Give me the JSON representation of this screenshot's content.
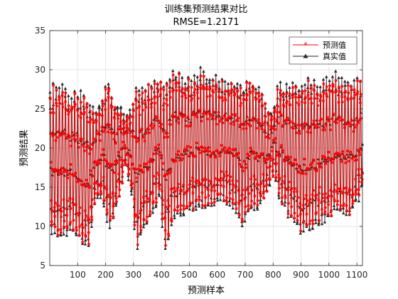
{
  "chart_data": {
    "type": "line",
    "title": "训练集预测结果对比",
    "subtitle": "RMSE=1.2171",
    "xlabel": "预测样本",
    "ylabel": "预测结果",
    "xlim": [
      0,
      1120
    ],
    "ylim": [
      5,
      35
    ],
    "xticks": [
      100,
      200,
      300,
      400,
      500,
      600,
      700,
      800,
      900,
      1000,
      1100
    ],
    "yticks": [
      5,
      10,
      15,
      20,
      25,
      30,
      35
    ],
    "grid": true,
    "legend_position": "top-right",
    "n_samples": 1120,
    "period": 11,
    "series": [
      {
        "name": "预测值",
        "color": "#ff0000",
        "marker": "star",
        "amplitude_scale": 0.92,
        "lag": 1
      },
      {
        "name": "真实值",
        "color": "#262626",
        "marker": "triangle-up",
        "amplitude_scale": 1.0,
        "lag": 0
      }
    ],
    "envelope": {
      "x": [
        0,
        40,
        80,
        120,
        140,
        160,
        190,
        210,
        230,
        250,
        270,
        290,
        310,
        330,
        360,
        390,
        410,
        430,
        450,
        470,
        500,
        540,
        580,
        620,
        660,
        690,
        720,
        750,
        780,
        800,
        820,
        840,
        870,
        900,
        930,
        960,
        990,
        1020,
        1050,
        1080,
        1120
      ],
      "high": [
        27.5,
        28.5,
        27.0,
        27.5,
        26.0,
        25.0,
        27.0,
        29.0,
        26.0,
        26.0,
        24.0,
        25.0,
        28.5,
        27.5,
        28.0,
        29.0,
        28.0,
        29.5,
        30.0,
        29.5,
        29.0,
        30.0,
        29.5,
        29.0,
        29.0,
        28.5,
        29.0,
        28.0,
        25.0,
        25.0,
        29.0,
        28.0,
        29.0,
        28.5,
        29.0,
        28.5,
        29.0,
        29.5,
        29.0,
        28.5,
        28.5
      ],
      "low": [
        9.0,
        8.0,
        9.0,
        6.5,
        7.0,
        13.0,
        13.0,
        9.0,
        11.0,
        14.0,
        18.0,
        14.0,
        6.5,
        9.0,
        11.0,
        13.0,
        7.0,
        9.0,
        11.0,
        11.0,
        12.0,
        12.0,
        12.0,
        13.0,
        12.0,
        10.0,
        12.0,
        12.0,
        14.0,
        17.0,
        13.0,
        12.0,
        10.0,
        9.0,
        9.0,
        10.0,
        10.0,
        11.0,
        11.0,
        11.0,
        14.5
      ]
    }
  }
}
